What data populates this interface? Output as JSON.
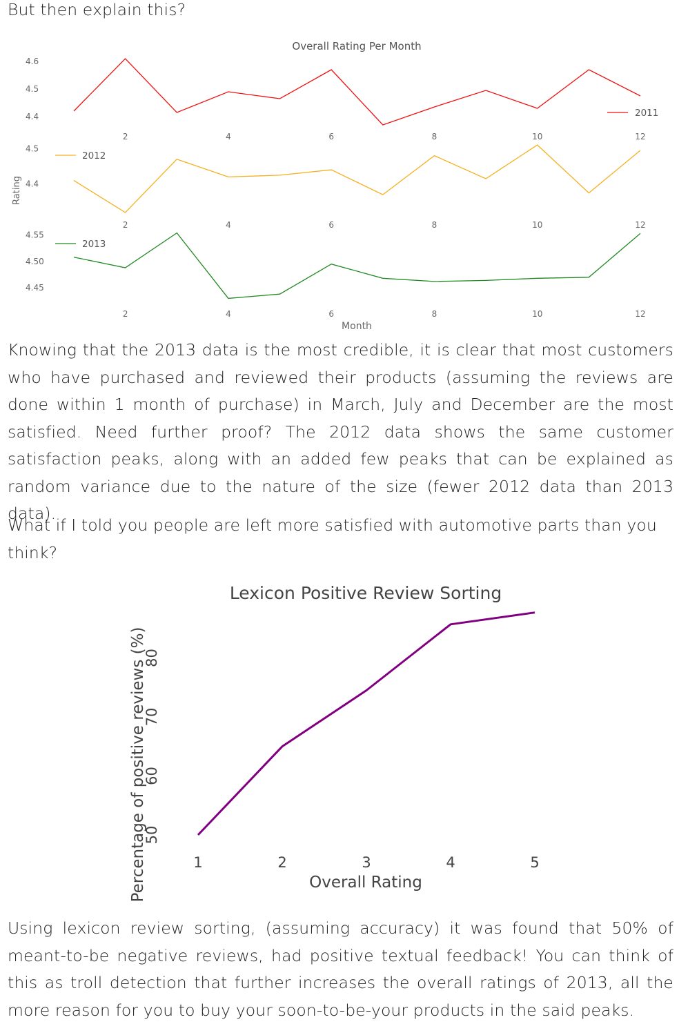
{
  "intro_text": "But then explain this?",
  "paragraph1": "Knowing that the 2013 data is the most credible, it is clear that most customers who have purchased and reviewed their products (assuming the reviews are done within 1 month of purchase) in March, July and December are the most satisfied. Need further proof? The 2012 data shows the same customer satisfaction peaks, along with an added few peaks that can be explained as random variance due to the nature of the size (fewer 2012 data than 2013 data).",
  "paragraph2": "What if I told you people are left more satisfied with automotive parts than you think?",
  "paragraph3": "Using lexicon review sorting, (assuming accuracy) it was found that 50% of meant-to-be negative reviews, had positive textual feedback! You can think of this as troll detection that further increases the overall ratings of 2013, all the more reason for you to buy your soon-to-be-your products in the said peaks.",
  "chart_data": [
    {
      "type": "line",
      "title": "Overall Rating Per Month",
      "xlabel": "Month",
      "ylabel": "Rating",
      "x": [
        1,
        2,
        3,
        4,
        5,
        6,
        7,
        8,
        9,
        10,
        11,
        12
      ],
      "x_ticks": [
        2,
        4,
        6,
        8,
        10,
        12
      ],
      "panels": [
        {
          "series_name": "2011",
          "color": "#ee1111",
          "legend_position": "right",
          "ylim": [
            4.36,
            4.62
          ],
          "y_ticks": [
            4.4,
            4.5,
            4.6
          ],
          "y_tick_labels": [
            "4.4",
            "4.5",
            "4.6"
          ],
          "values": [
            4.42,
            4.61,
            4.415,
            4.49,
            4.465,
            4.57,
            4.37,
            4.435,
            4.495,
            4.43,
            4.57,
            4.475
          ]
        },
        {
          "series_name": "2012",
          "color": "#f5b020",
          "legend_position": "left",
          "ylim": [
            4.31,
            4.52
          ],
          "y_ticks": [
            4.4,
            4.5
          ],
          "y_tick_labels": [
            "4.4",
            "4.5"
          ],
          "values": [
            4.41,
            4.32,
            4.47,
            4.42,
            4.425,
            4.44,
            4.37,
            4.48,
            4.415,
            4.51,
            4.375,
            4.495
          ]
        },
        {
          "series_name": "2013",
          "color": "#228822",
          "legend_position": "left",
          "ylim": [
            4.42,
            4.56
          ],
          "y_ticks": [
            4.45,
            4.5,
            4.55
          ],
          "y_tick_labels": [
            "4.45",
            "4.50",
            "4.55"
          ],
          "values": [
            4.508,
            4.488,
            4.554,
            4.43,
            4.438,
            4.495,
            4.468,
            4.462,
            4.464,
            4.468,
            4.47,
            4.553
          ]
        }
      ]
    },
    {
      "type": "line",
      "title": "Lexicon Positive Review Sorting",
      "xlabel": "Overall Rating",
      "ylabel": "Percentage of positive reviews (%)",
      "color": "#800080",
      "x": [
        1,
        2,
        3,
        4,
        5
      ],
      "values": [
        50,
        65,
        74.5,
        85.7,
        87.7
      ],
      "x_ticks": [
        1,
        2,
        3,
        4,
        5
      ],
      "y_ticks": [
        50,
        60,
        70,
        80
      ],
      "xlim": [
        0.5,
        5.5
      ],
      "ylim": [
        44,
        95
      ]
    }
  ]
}
